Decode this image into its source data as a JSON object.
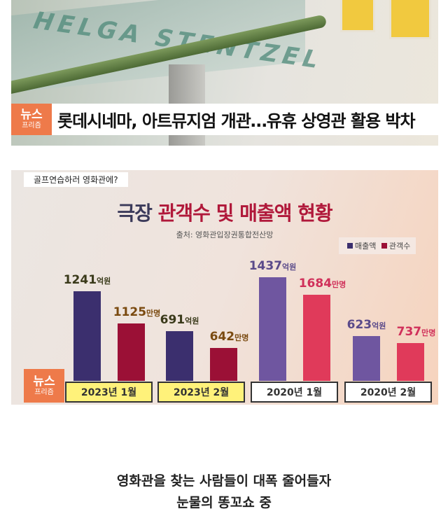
{
  "photo": {
    "badge_top": "뉴스",
    "badge_bottom": "프리즘",
    "headline": "롯데시네마, 아트뮤지엄 개관…유휴 상영관 활용 박차",
    "wall_lettering": "HELGA STENTZEL"
  },
  "chart_data": {
    "type": "bar",
    "tag": "골프연습하러 영화관에?",
    "title_part1": "극장",
    "title_part2": "관객수 및 매출액 현황",
    "source": "출처: 영화관입장권통합전산망",
    "categories": [
      "2023년 1월",
      "2023년 2월",
      "2020년 1월",
      "2020년 2월"
    ],
    "series": [
      {
        "name": "매출액",
        "unit": "억원",
        "values": [
          1241,
          691,
          1437,
          623
        ],
        "colors": [
          "#3b2f6e",
          "#3b2f6e",
          "#6f56a0",
          "#6f56a0"
        ]
      },
      {
        "name": "관객수",
        "unit": "만명",
        "values": [
          1125,
          642,
          1684,
          737
        ],
        "colors": [
          "#9b1036",
          "#9b1036",
          "#e03a5a",
          "#e03a5a"
        ]
      }
    ],
    "category_box_colors": [
      "#fff27a",
      "#fff27a",
      "#ffffff",
      "#ffffff"
    ],
    "legend": "top-right",
    "badge_top": "뉴스",
    "badge_bottom": "프리즘"
  },
  "footer": {
    "line1": "영화관을 찾는 사람들이 대폭 줄어들자",
    "line2": "눈물의 똥꼬쇼 중"
  }
}
